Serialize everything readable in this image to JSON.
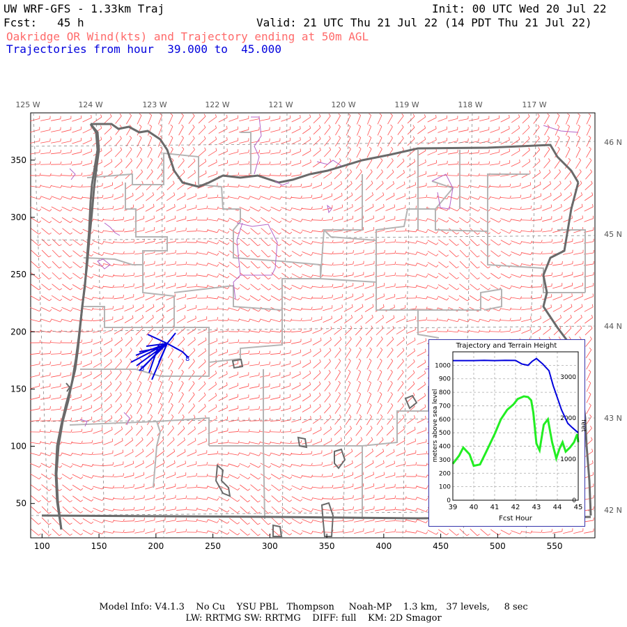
{
  "header": {
    "title": "UW WRF-GFS - 1.33km Traj",
    "init": "Init: 00 UTC Wed 20 Jul 22",
    "fcst": "Fcst:   45 h",
    "valid": "Valid: 21 UTC Thu 21 Jul 22 (14 PDT Thu 21 Jul 22)",
    "subtitle": "Oakridge OR Wind(kts) and Trajectory ending at 50m AGL",
    "traj_hours": "Trajectories from hour  39.000 to  45.000"
  },
  "colors": {
    "barb": "#ff4d4d",
    "subtitle": "#ff6a6a",
    "trajectory": "#0000dd",
    "state_line": "#6a6a6a",
    "county_line": "#b4b4b4",
    "water": "#b464c8",
    "terrain_line": "#22ee22",
    "inset_border": "#3333aa"
  },
  "map": {
    "lon_labels": [
      "125 W",
      "124 W",
      "123 W",
      "122 W",
      "121 W",
      "120 W",
      "119 W",
      "118 W",
      "117 W"
    ],
    "lat_labels": [
      "46 N",
      "45 N",
      "44 N",
      "43 N",
      "42 N"
    ],
    "x_ticks": [
      "100",
      "150",
      "200",
      "250",
      "300",
      "350",
      "400",
      "450",
      "500",
      "550"
    ],
    "y_ticks": [
      "350",
      "300",
      "250",
      "200",
      "150",
      "100",
      "50"
    ]
  },
  "inset": {
    "title": "Trajectory and Terrain Height",
    "xlabel": "Fcst Hour",
    "ylabel": "meters above sea level",
    "ylabel_right": "feet",
    "x_ticks": [
      "39",
      "40",
      "41",
      "42",
      "43",
      "44",
      "45"
    ],
    "y_ticks": [
      "0",
      "100",
      "200",
      "300",
      "400",
      "500",
      "600",
      "700",
      "800",
      "900",
      "1000"
    ],
    "feet_ticks": [
      "0",
      "1000",
      "2000",
      "3000"
    ]
  },
  "chart_data": {
    "type": "line",
    "title": "Trajectory and Terrain Height",
    "xlabel": "Fcst Hour",
    "ylabel": "meters above sea level",
    "xlim": [
      39,
      45
    ],
    "ylim": [
      0,
      1100
    ],
    "series": [
      {
        "x": [
          39.0,
          39.5,
          40.0,
          40.5,
          41.0,
          41.5,
          42.0,
          42.3,
          42.6,
          42.8,
          43.0,
          43.3,
          43.6,
          43.8,
          44.0,
          44.2,
          44.5,
          44.7,
          44.85,
          45.0
        ],
        "values": [
          1035,
          1035,
          1035,
          1037,
          1035,
          1037,
          1036,
          1010,
          1000,
          1030,
          1050,
          1010,
          960,
          850,
          760,
          670,
          570,
          540,
          520,
          500
        ]
      },
      {
        "x": [
          39.0,
          39.3,
          39.5,
          39.8,
          40.0,
          40.3,
          40.6,
          41.0,
          41.3,
          41.6,
          41.9,
          42.1,
          42.4,
          42.6,
          42.75,
          42.85,
          43.0,
          43.15,
          43.35,
          43.55,
          43.75,
          43.95,
          44.1,
          44.25,
          44.4,
          44.6,
          44.8,
          44.95,
          45.0
        ],
        "values": [
          270,
          330,
          390,
          340,
          255,
          265,
          360,
          490,
          600,
          670,
          710,
          750,
          770,
          765,
          740,
          650,
          420,
          370,
          560,
          600,
          430,
          310,
          380,
          430,
          360,
          390,
          430,
          490,
          430
        ]
      }
    ]
  }
}
